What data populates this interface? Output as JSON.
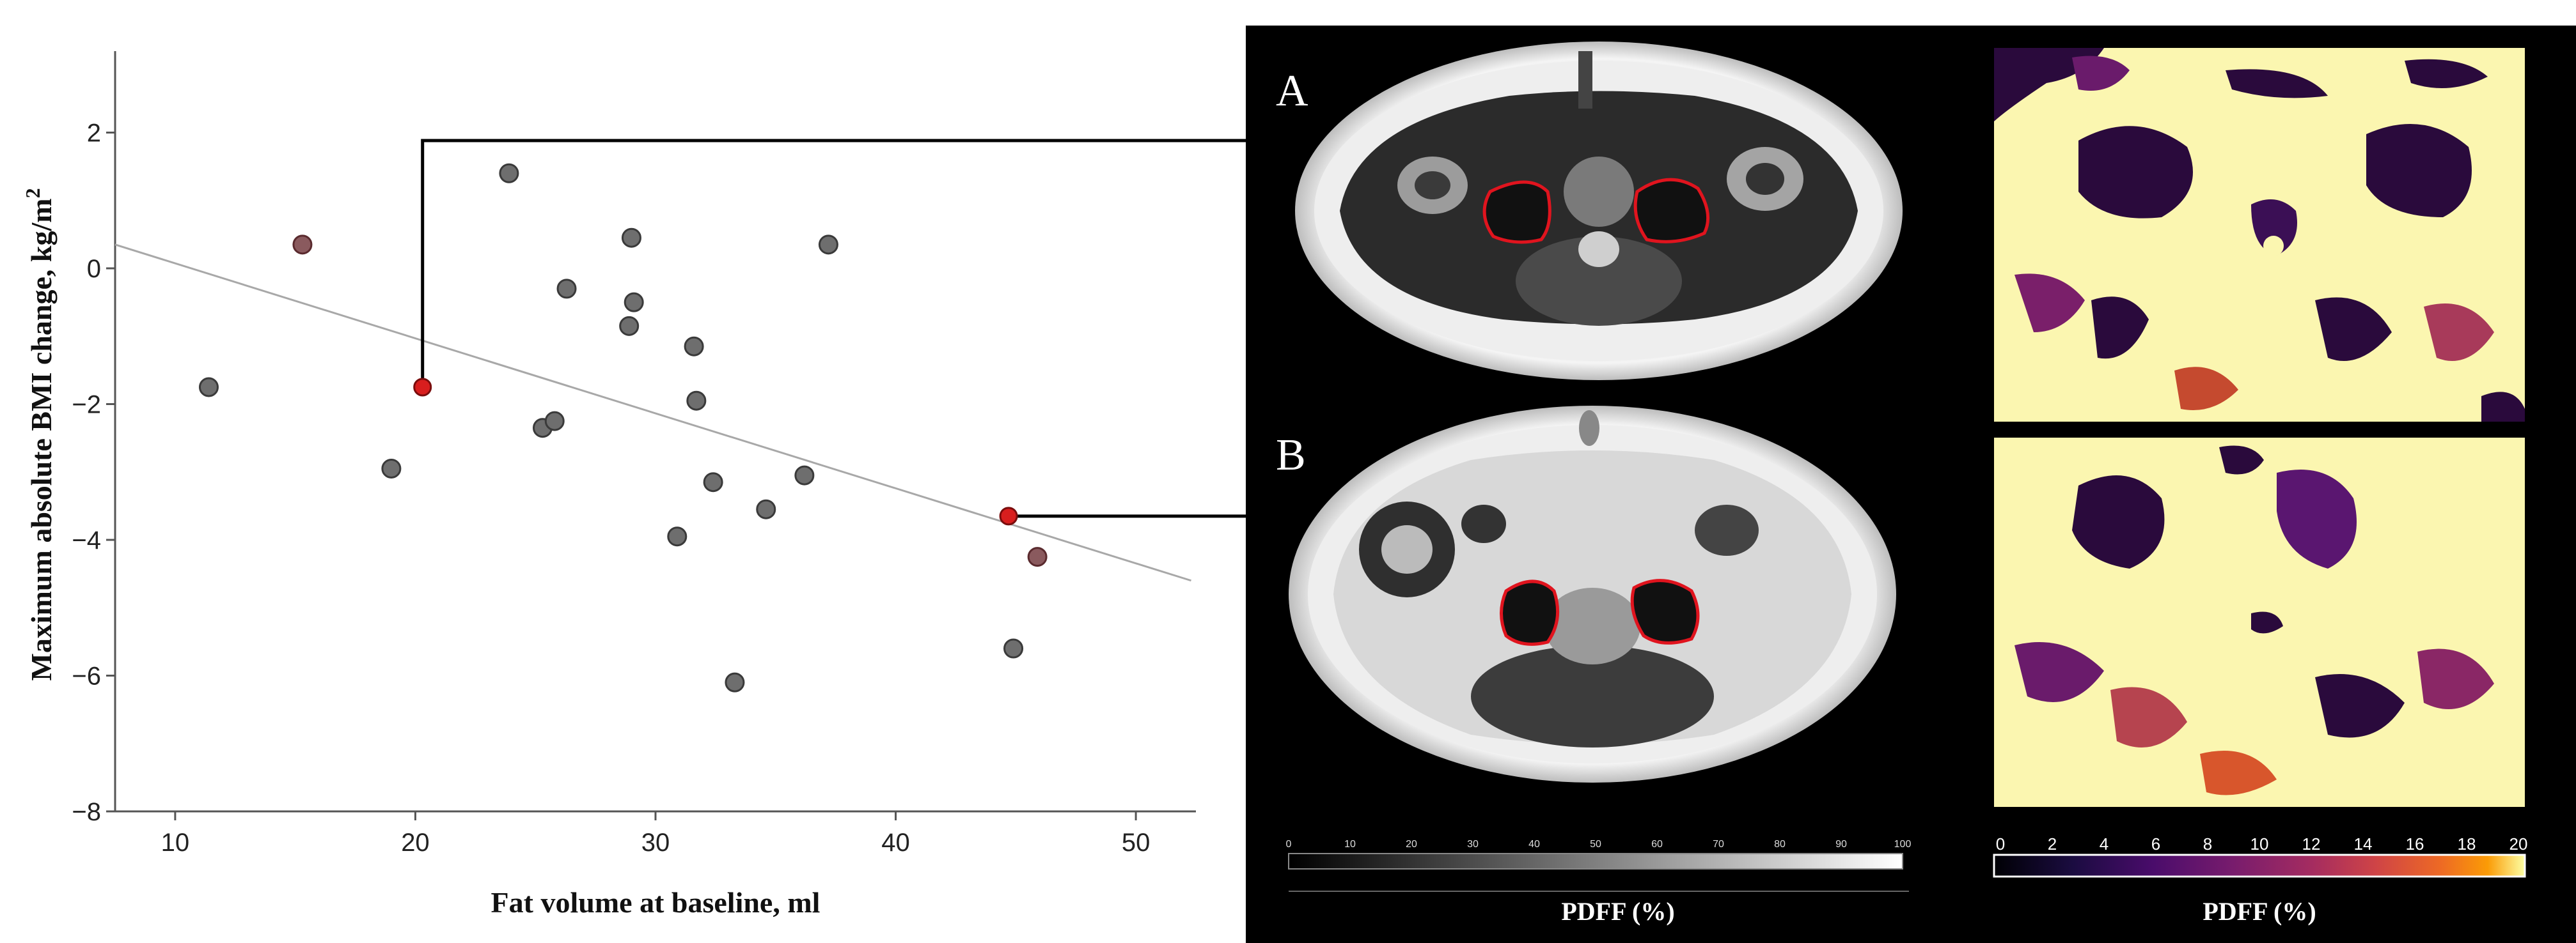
{
  "chart_data": {
    "type": "scatter",
    "xlabel": "Fat volume at baseline, ml",
    "ylabel": "Maximum absolute BMI change, kg/m",
    "ylabel_superscript": "2",
    "xlim": [
      7.5,
      52.5
    ],
    "ylim": [
      -8,
      3.2
    ],
    "xticks": [
      10,
      20,
      30,
      40,
      50
    ],
    "yticks": [
      2,
      0,
      -2,
      -4,
      -6,
      -8
    ],
    "ytick_labels": [
      "2",
      "0",
      "−2",
      "−4",
      "−6",
      "−8"
    ],
    "grid": false,
    "point_color": "#6e6e6e",
    "highlight_color": "#d81e1e",
    "fit_line": {
      "x": [
        7.5,
        52.3
      ],
      "y": [
        0.35,
        -4.6
      ],
      "color": "#a8a8a8"
    },
    "points": [
      {
        "x": 11.4,
        "y": -1.75
      },
      {
        "x": 15.3,
        "y": 0.35,
        "tint": "red"
      },
      {
        "x": 19.0,
        "y": -2.95
      },
      {
        "x": 20.3,
        "y": -1.75,
        "highlight": true,
        "callout": "A"
      },
      {
        "x": 23.9,
        "y": 1.4
      },
      {
        "x": 25.3,
        "y": -2.35
      },
      {
        "x": 25.8,
        "y": -2.25
      },
      {
        "x": 26.3,
        "y": -0.3
      },
      {
        "x": 28.9,
        "y": -0.85
      },
      {
        "x": 29.0,
        "y": 0.45
      },
      {
        "x": 29.1,
        "y": -0.5
      },
      {
        "x": 30.9,
        "y": -3.95
      },
      {
        "x": 31.6,
        "y": -1.15
      },
      {
        "x": 31.7,
        "y": -1.95
      },
      {
        "x": 32.4,
        "y": -3.15
      },
      {
        "x": 33.3,
        "y": -6.1
      },
      {
        "x": 34.6,
        "y": -3.55
      },
      {
        "x": 36.2,
        "y": -3.05
      },
      {
        "x": 37.2,
        "y": 0.35
      },
      {
        "x": 44.7,
        "y": -3.65,
        "highlight": true,
        "callout": "B"
      },
      {
        "x": 44.9,
        "y": -5.6
      },
      {
        "x": 45.9,
        "y": -4.25,
        "tint": "red"
      }
    ]
  },
  "panels": {
    "a_label": "A",
    "b_label": "B"
  },
  "colorbar_gray": {
    "title": "PDFF (%)",
    "ticks": [
      "0",
      "10",
      "20",
      "30",
      "40",
      "50",
      "60",
      "70",
      "80",
      "90",
      "100"
    ]
  },
  "colorbar_inferno": {
    "title": "PDFF (%)",
    "ticks": [
      "0",
      "2",
      "4",
      "6",
      "8",
      "10",
      "12",
      "14",
      "16",
      "18",
      "20"
    ]
  },
  "colors": {
    "panel_background": "#000000",
    "roi_outline": "#e0141e",
    "callout_line": "#000000",
    "map_background": "#fbf6b0",
    "map_fat": "#2a0a3c"
  }
}
